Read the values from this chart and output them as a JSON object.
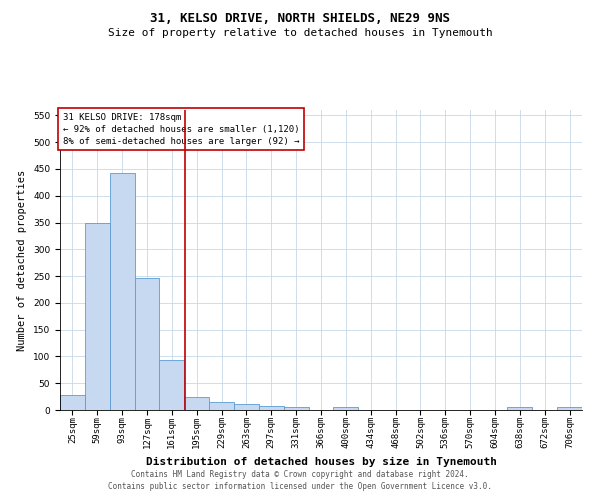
{
  "title": "31, KELSO DRIVE, NORTH SHIELDS, NE29 9NS",
  "subtitle": "Size of property relative to detached houses in Tynemouth",
  "xlabel": "Distribution of detached houses by size in Tynemouth",
  "ylabel": "Number of detached properties",
  "bar_labels": [
    "25sqm",
    "59sqm",
    "93sqm",
    "127sqm",
    "161sqm",
    "195sqm",
    "229sqm",
    "263sqm",
    "297sqm",
    "331sqm",
    "366sqm",
    "400sqm",
    "434sqm",
    "468sqm",
    "502sqm",
    "536sqm",
    "570sqm",
    "604sqm",
    "638sqm",
    "672sqm",
    "706sqm"
  ],
  "bar_values": [
    28,
    349,
    443,
    247,
    94,
    25,
    15,
    12,
    7,
    5,
    0,
    5,
    0,
    0,
    0,
    0,
    0,
    0,
    5,
    0,
    5
  ],
  "bar_color": "#c6d9f0",
  "bar_edge_color": "#5b9bd5",
  "ylim": [
    0,
    560
  ],
  "yticks": [
    0,
    50,
    100,
    150,
    200,
    250,
    300,
    350,
    400,
    450,
    500,
    550
  ],
  "property_line_x": 4.53,
  "property_line_color": "#c00000",
  "annotation_text": "31 KELSO DRIVE: 178sqm\n← 92% of detached houses are smaller (1,120)\n8% of semi-detached houses are larger (92) →",
  "annotation_box_color": "#ffffff",
  "annotation_box_edge_color": "#c00000",
  "footnote1": "Contains HM Land Registry data © Crown copyright and database right 2024.",
  "footnote2": "Contains public sector information licensed under the Open Government Licence v3.0.",
  "title_fontsize": 9,
  "subtitle_fontsize": 8,
  "xlabel_fontsize": 8,
  "ylabel_fontsize": 7.5,
  "tick_fontsize": 6.5,
  "annotation_fontsize": 6.5,
  "footnote_fontsize": 5.5,
  "background_color": "#ffffff",
  "grid_color": "#c8d8e8"
}
